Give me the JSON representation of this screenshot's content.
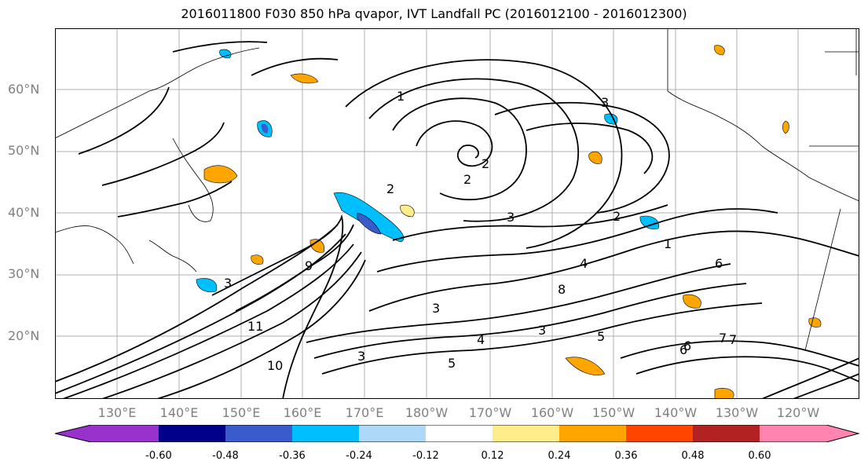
{
  "title": "2016011800 F030 850 hPa qvapor, IVT Landfall PC (2016012100 - 2016012300)",
  "lat_labels": [
    "60°N",
    "50°N",
    "40°N",
    "30°N",
    "20°N"
  ],
  "lon_labels": [
    "130°E",
    "140°E",
    "150°E",
    "160°E",
    "170°E",
    "180°W",
    "170°W",
    "160°W",
    "150°W",
    "140°W",
    "130°W",
    "120°W"
  ],
  "colorbar": {
    "ticks": [
      "-0.60",
      "-0.48",
      "-0.36",
      "-0.24",
      "-0.12",
      "0.12",
      "0.24",
      "0.36",
      "0.48",
      "0.60"
    ],
    "colors": [
      "#9932cc",
      "#00008b",
      "#3a5bcc",
      "#00bfff",
      "#add8f7",
      "#ffffff",
      "#ffec8b",
      "#ffa500",
      "#ff4500",
      "#b22222",
      "#ff85b0"
    ]
  },
  "contour_labels": [
    "1",
    "2",
    "2",
    "2",
    "3",
    "3",
    "2",
    "1",
    "3",
    "4",
    "6",
    "8",
    "5",
    "3",
    "6",
    "7",
    "10",
    "11",
    "9",
    "3",
    "3",
    "4",
    "5",
    "6",
    "7"
  ],
  "colors": {
    "grid": "#b0b0b0",
    "contour": "#000000",
    "axis_label": "#808080"
  }
}
